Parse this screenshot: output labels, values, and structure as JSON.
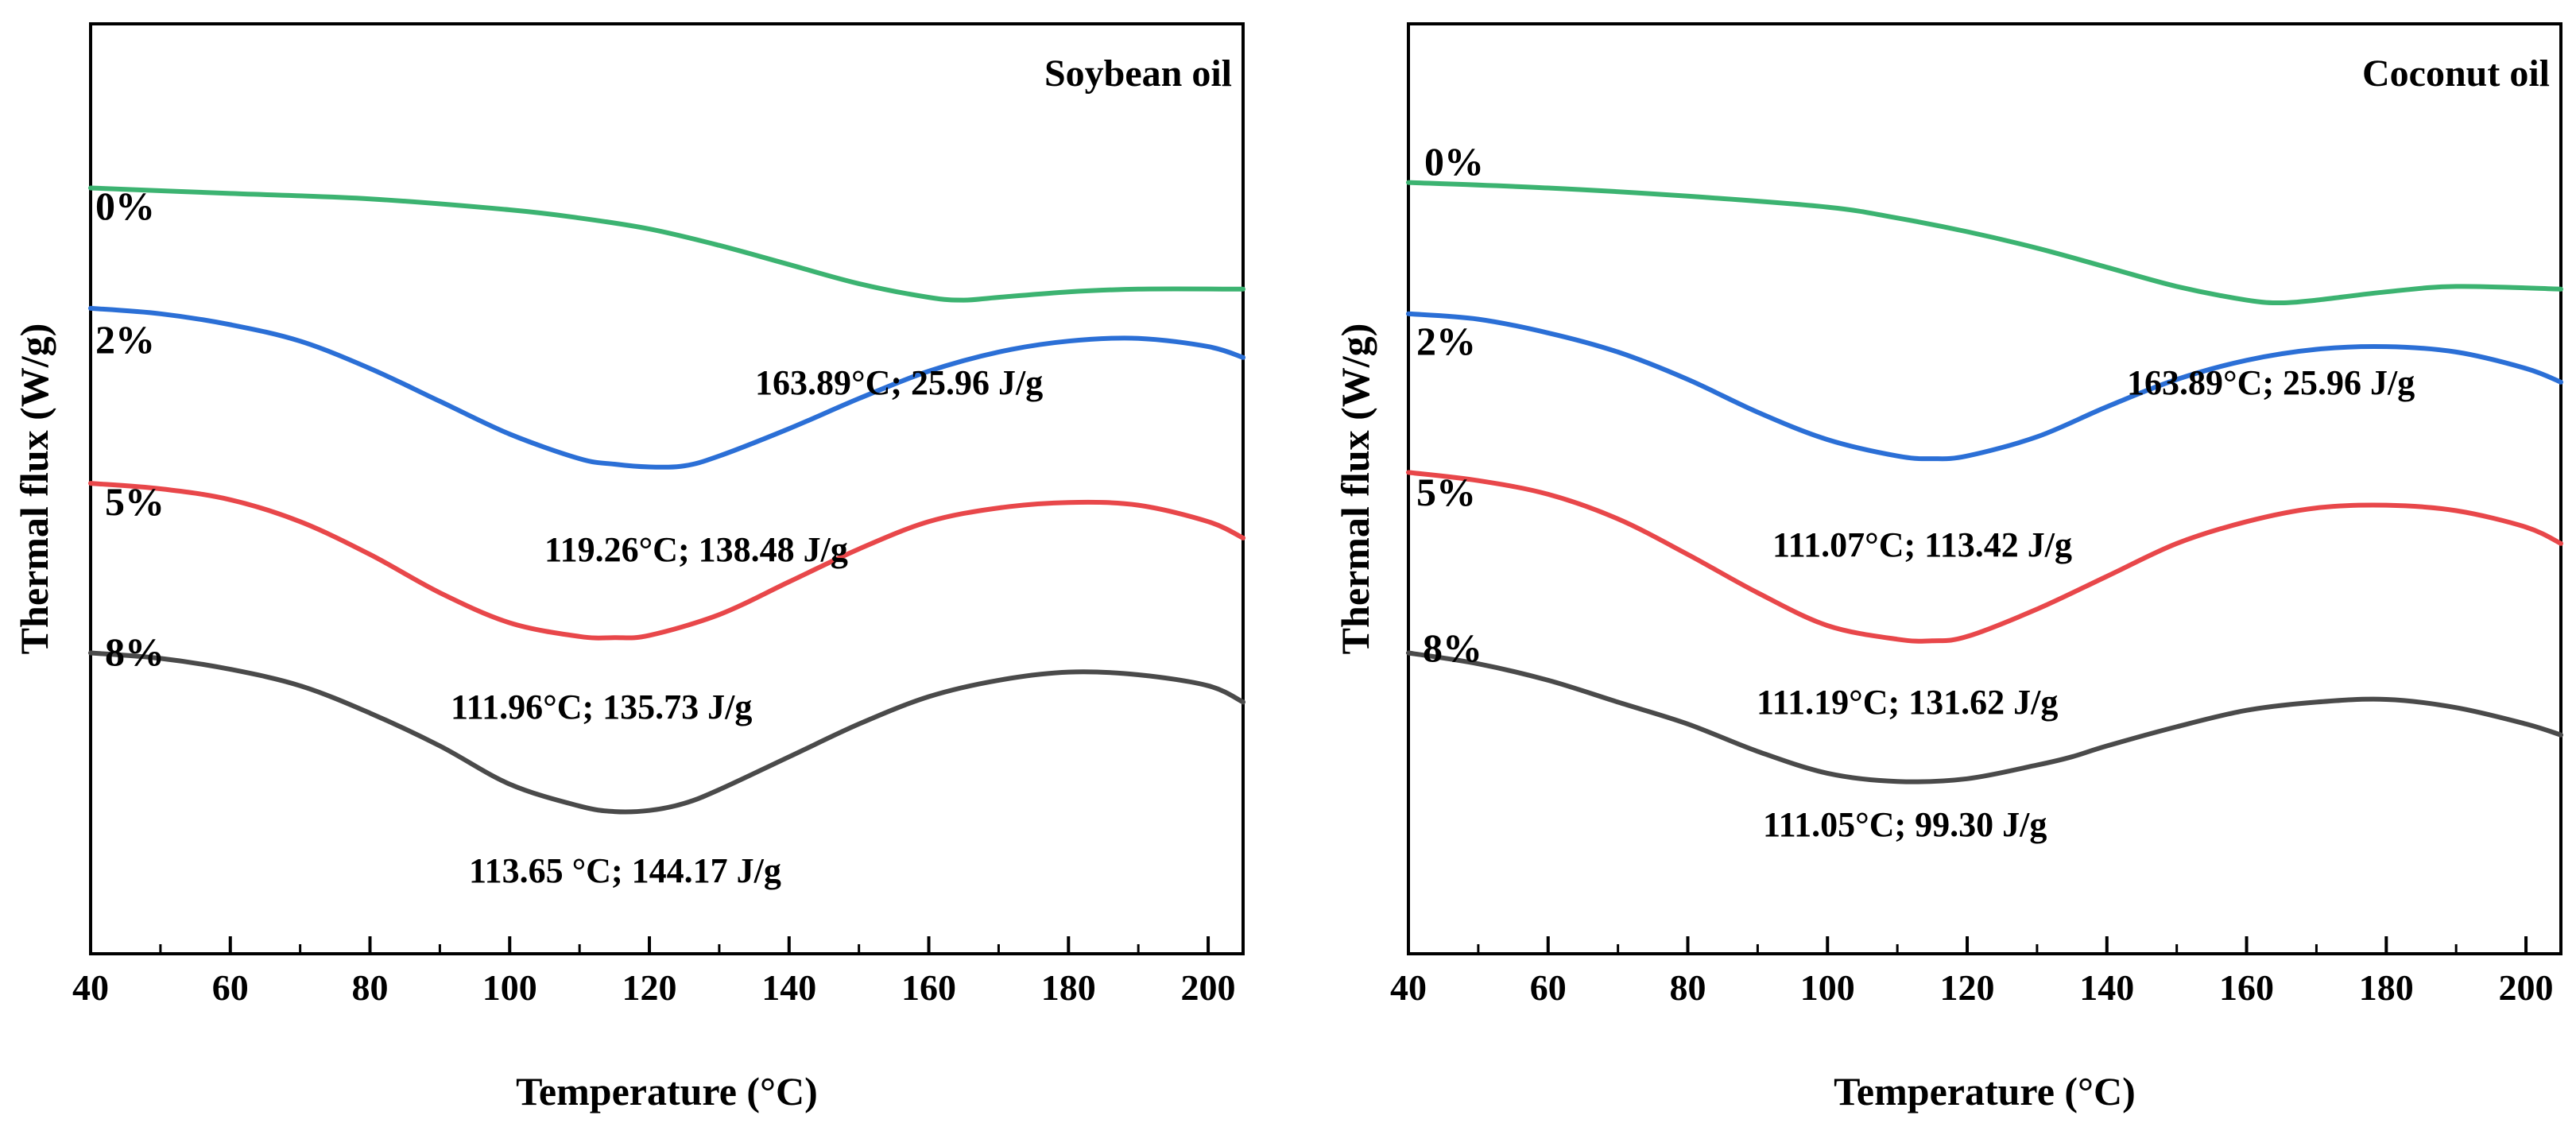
{
  "colors": {
    "0%": "#3cb371",
    "2%": "#2b6fd6",
    "5%": "#e8474a",
    "8%": "#4a4a4a"
  },
  "chart_data": [
    {
      "type": "line",
      "title": "Soybean oil",
      "xlabel": "Temperature (°C)",
      "ylabel": "Thermal  flux (W/g)",
      "xlim": [
        40,
        205
      ],
      "xticks": [
        40,
        60,
        80,
        100,
        120,
        140,
        160,
        180,
        200
      ],
      "yticks_shown": false,
      "series": [
        {
          "name": "0%",
          "color_key": "0%",
          "x": [
            40,
            60,
            80,
            100,
            110,
            120,
            130,
            140,
            150,
            160,
            165,
            170,
            180,
            190,
            205
          ],
          "y": [
            10.0,
            9.9,
            9.8,
            9.6,
            9.45,
            9.25,
            8.95,
            8.6,
            8.25,
            8.0,
            7.95,
            8.0,
            8.1,
            8.15,
            8.15
          ],
          "annotation": "163.89°C; 25.96 J/g"
        },
        {
          "name": "2%",
          "color_key": "2%",
          "x": [
            40,
            50,
            60,
            70,
            80,
            90,
            100,
            110,
            115,
            120,
            125,
            130,
            140,
            150,
            160,
            170,
            180,
            190,
            200,
            205
          ],
          "y": [
            7.8,
            7.7,
            7.5,
            7.2,
            6.7,
            6.1,
            5.5,
            5.05,
            4.95,
            4.9,
            4.92,
            5.1,
            5.6,
            6.15,
            6.65,
            7.0,
            7.2,
            7.25,
            7.1,
            6.9
          ],
          "annotation": "119.26°C; 138.48 J/g"
        },
        {
          "name": "5%",
          "color_key": "5%",
          "x": [
            40,
            50,
            60,
            70,
            80,
            90,
            100,
            110,
            115,
            120,
            130,
            140,
            150,
            160,
            170,
            180,
            190,
            200,
            205
          ],
          "y": [
            4.6,
            4.5,
            4.3,
            3.9,
            3.3,
            2.6,
            2.05,
            1.8,
            1.78,
            1.82,
            2.2,
            2.8,
            3.4,
            3.9,
            4.15,
            4.25,
            4.2,
            3.9,
            3.6
          ],
          "annotation": "111.96°C; 135.73 J/g"
        },
        {
          "name": "8%",
          "color_key": "8%",
          "x": [
            40,
            50,
            60,
            70,
            80,
            90,
            100,
            110,
            115,
            120,
            125,
            130,
            140,
            150,
            160,
            170,
            180,
            190,
            200,
            205
          ],
          "y": [
            1.5,
            1.4,
            1.2,
            0.9,
            0.4,
            -0.2,
            -0.9,
            -1.3,
            -1.4,
            -1.38,
            -1.25,
            -1.0,
            -0.4,
            0.2,
            0.7,
            1.0,
            1.15,
            1.1,
            0.9,
            0.6
          ],
          "annotation": "113.65 °C; 144.17 J/g"
        }
      ]
    },
    {
      "type": "line",
      "title": "Coconut oil",
      "xlabel": "Temperature (°C)",
      "ylabel": "Thermal  flux (W/g)",
      "xlim": [
        40,
        205
      ],
      "xticks": [
        40,
        60,
        80,
        100,
        120,
        140,
        160,
        180,
        200
      ],
      "yticks_shown": false,
      "series": [
        {
          "name": "0%",
          "color_key": "0%",
          "x": [
            40,
            60,
            80,
            100,
            110,
            120,
            130,
            140,
            150,
            160,
            165,
            170,
            180,
            190,
            205
          ],
          "y": [
            10.1,
            10.0,
            9.85,
            9.65,
            9.45,
            9.2,
            8.9,
            8.55,
            8.2,
            7.95,
            7.9,
            7.95,
            8.1,
            8.2,
            8.15
          ],
          "annotation": "163.89°C; 25.96 J/g"
        },
        {
          "name": "2%",
          "color_key": "2%",
          "x": [
            40,
            50,
            60,
            70,
            80,
            90,
            100,
            110,
            115,
            120,
            130,
            140,
            150,
            160,
            170,
            180,
            190,
            200,
            205
          ],
          "y": [
            7.7,
            7.6,
            7.35,
            7.0,
            6.5,
            5.9,
            5.4,
            5.1,
            5.05,
            5.1,
            5.45,
            6.0,
            6.5,
            6.85,
            7.05,
            7.1,
            7.0,
            6.7,
            6.45
          ],
          "annotation": "111.07°C; 113.42 J/g"
        },
        {
          "name": "5%",
          "color_key": "5%",
          "x": [
            40,
            50,
            60,
            70,
            80,
            90,
            100,
            110,
            115,
            120,
            130,
            140,
            150,
            160,
            170,
            180,
            190,
            200,
            205
          ],
          "y": [
            4.8,
            4.65,
            4.4,
            3.95,
            3.3,
            2.6,
            2.0,
            1.75,
            1.72,
            1.8,
            2.3,
            2.9,
            3.5,
            3.9,
            4.15,
            4.2,
            4.1,
            3.8,
            3.5
          ],
          "annotation": "111.19°C; 131.62 J/g"
        },
        {
          "name": "8%",
          "color_key": "8%",
          "x": [
            40,
            50,
            60,
            70,
            80,
            90,
            100,
            110,
            120,
            130,
            135,
            140,
            150,
            160,
            170,
            180,
            190,
            200,
            205
          ],
          "y": [
            1.5,
            1.3,
            1.0,
            0.6,
            0.2,
            -0.3,
            -0.7,
            -0.85,
            -0.8,
            -0.55,
            -0.4,
            -0.2,
            0.15,
            0.45,
            0.6,
            0.65,
            0.5,
            0.2,
            0.0
          ],
          "annotation": "111.05°C; 99.30 J/g"
        }
      ]
    }
  ]
}
